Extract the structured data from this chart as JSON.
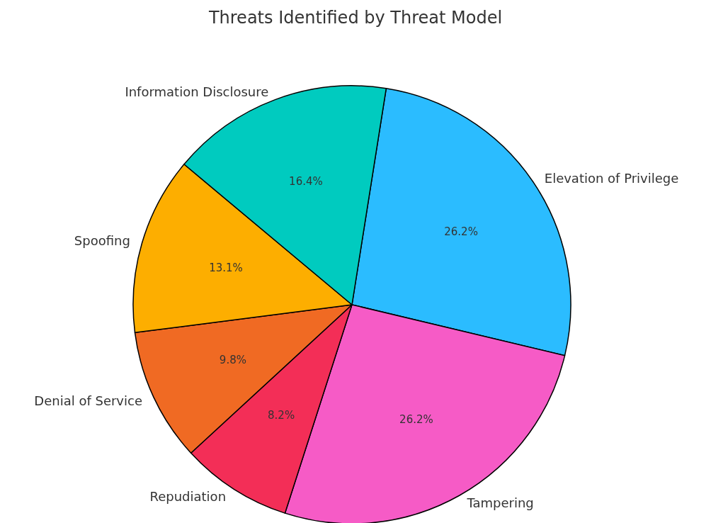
{
  "chart_data": {
    "type": "pie",
    "title": "Threats Identified by Threat Model",
    "categories": [
      "Elevation of Privilege",
      "Tampering",
      "Repudiation",
      "Denial of Service",
      "Spoofing",
      "Information Disclosure"
    ],
    "values": [
      26.2,
      26.2,
      8.2,
      9.8,
      13.1,
      16.4
    ],
    "value_labels": [
      "26.2%",
      "26.2%",
      "8.2%",
      "9.8%",
      "13.1%",
      "16.4%"
    ],
    "colors": [
      "#2bbcff",
      "#f65bc6",
      "#f32e57",
      "#f06a23",
      "#fdae00",
      "#00cbbf"
    ],
    "legend": false
  }
}
